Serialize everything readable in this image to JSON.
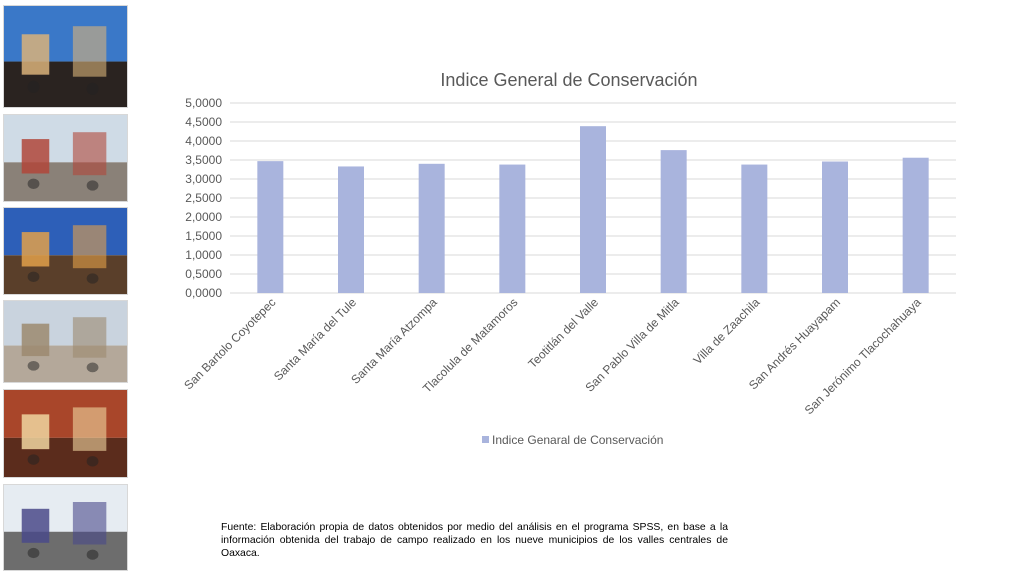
{
  "photos": [
    {
      "name": "photo-cathedral-rooftop",
      "sky": "#3a78c8",
      "ground": "#2a2320",
      "accent": "#d9b27a"
    },
    {
      "name": "photo-pedestrian-street",
      "sky": "#cfdbe6",
      "ground": "#8a8178",
      "accent": "#b0473a"
    },
    {
      "name": "photo-evening-terrace",
      "sky": "#2d5fb8",
      "ground": "#5a3f2a",
      "accent": "#e2a04a"
    },
    {
      "name": "photo-santo-domingo",
      "sky": "#c9d3de",
      "ground": "#b4a89a",
      "accent": "#9c8a70"
    },
    {
      "name": "photo-hotel-room",
      "sky": "#a9462a",
      "ground": "#5b2c1c",
      "accent": "#f0d6a0"
    },
    {
      "name": "photo-tourist-crowd",
      "sky": "#e6ecf2",
      "ground": "#6d6d6d",
      "accent": "#4a4a8a"
    }
  ],
  "chart_data": {
    "type": "bar",
    "title": "Indice General de Conservación",
    "categories": [
      "San Bartolo Coyotepec",
      "Santa María del Tule",
      "Santa María Atzompa",
      "Tlacolula de Matamoros",
      "Teotitlán del Valle",
      "San Pablo Villa de Mitla",
      "Villa de Zaachila",
      "San Andrés Huayapam",
      "San Jerónimo Tlacochahuaya"
    ],
    "series": [
      {
        "name": "Indice Genaral de Conservación",
        "values": [
          3.47,
          3.33,
          3.4,
          3.38,
          4.39,
          3.76,
          3.38,
          3.46,
          3.56
        ]
      }
    ],
    "ylim": [
      0,
      5
    ],
    "yticks": [
      "0,0000",
      "0,5000",
      "1,0000",
      "1,5000",
      "2,0000",
      "2,5000",
      "3,0000",
      "3,5000",
      "4,0000",
      "4,5000",
      "5,0000"
    ],
    "grid": true,
    "legend_position": "bottom",
    "bar_color": "#a9b4dd",
    "title_color": "#595959",
    "grid_color": "#d9d9d9"
  },
  "footnote": "Fuente: Elaboración propia de datos obtenidos por medio del  análisis en el programa SPSS, en base a la información obtenida del trabajo de campo realizado en los nueve municipios de los valles centrales de Oaxaca."
}
